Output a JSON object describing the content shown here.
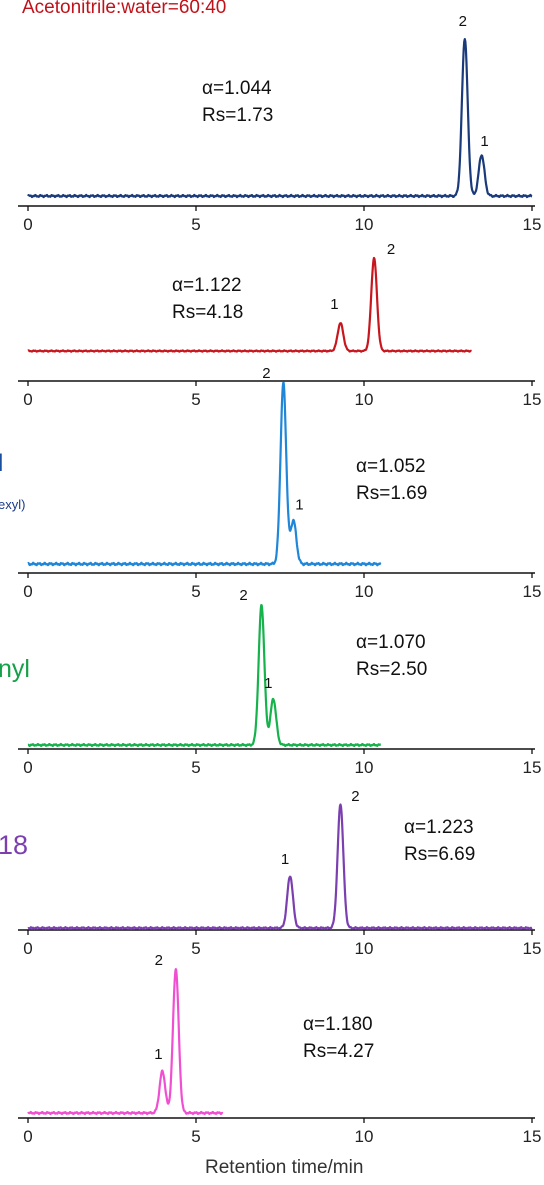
{
  "condition": "Acetonitrile:water=60:40",
  "xlabel": "Retention time/min",
  "side_labels": [
    "l",
    "exyl)",
    "nyl",
    "18"
  ],
  "chart_data": [
    {
      "type": "line",
      "color": "#1a3a7a",
      "xlim": [
        0,
        15
      ],
      "xticks": [
        0,
        5,
        10,
        15
      ],
      "baseline_end": 15,
      "peaks": [
        {
          "label": "2",
          "x": 13.0,
          "height": 1.0
        },
        {
          "label": "1",
          "x": 13.5,
          "height": 0.26
        }
      ],
      "annotation": [
        "α=1.044",
        "Rs=1.73"
      ]
    },
    {
      "type": "line",
      "color": "#c8161e",
      "xlim": [
        0,
        15
      ],
      "xticks": [
        0,
        5,
        10,
        15
      ],
      "baseline_end": 13.2,
      "peaks": [
        {
          "label": "1",
          "x": 9.3,
          "height": 0.3
        },
        {
          "label": "2",
          "x": 10.3,
          "height": 1.0
        }
      ],
      "annotation": [
        "α=1.122",
        "Rs=4.18"
      ]
    },
    {
      "type": "line",
      "color": "#1f86d8",
      "xlim": [
        0,
        15
      ],
      "xticks": [
        0,
        5,
        10,
        15
      ],
      "baseline_end": 10.5,
      "peaks": [
        {
          "label": "2",
          "x": 7.6,
          "height": 1.0
        },
        {
          "label": "1",
          "x": 7.9,
          "height": 0.24
        }
      ],
      "annotation": [
        "α=1.052",
        "Rs=1.69"
      ]
    },
    {
      "type": "line",
      "color": "#16b24c",
      "xlim": [
        0,
        15
      ],
      "xticks": [
        0,
        5,
        10,
        15
      ],
      "baseline_end": 10.5,
      "peaks": [
        {
          "label": "2",
          "x": 6.95,
          "height": 1.0
        },
        {
          "label": "1",
          "x": 7.3,
          "height": 0.33
        }
      ],
      "annotation": [
        "α=1.070",
        "Rs=2.50"
      ]
    },
    {
      "type": "line",
      "color": "#7b3fb0",
      "xlim": [
        0,
        15
      ],
      "xticks": [
        0,
        5,
        10,
        15
      ],
      "baseline_end": 15,
      "peaks": [
        {
          "label": "1",
          "x": 7.8,
          "height": 0.42
        },
        {
          "label": "2",
          "x": 9.3,
          "height": 1.0
        }
      ],
      "annotation": [
        "α=1.223",
        "Rs=6.69"
      ]
    },
    {
      "type": "line",
      "color": "#f04fd2",
      "xlim": [
        0,
        15
      ],
      "xticks": [
        0,
        5,
        10,
        15
      ],
      "baseline_end": 5.8,
      "peaks": [
        {
          "label": "1",
          "x": 4.0,
          "height": 0.29
        },
        {
          "label": "2",
          "x": 4.4,
          "height": 1.0
        }
      ],
      "annotation": [
        "α=1.180",
        "Rs=4.27"
      ]
    }
  ]
}
